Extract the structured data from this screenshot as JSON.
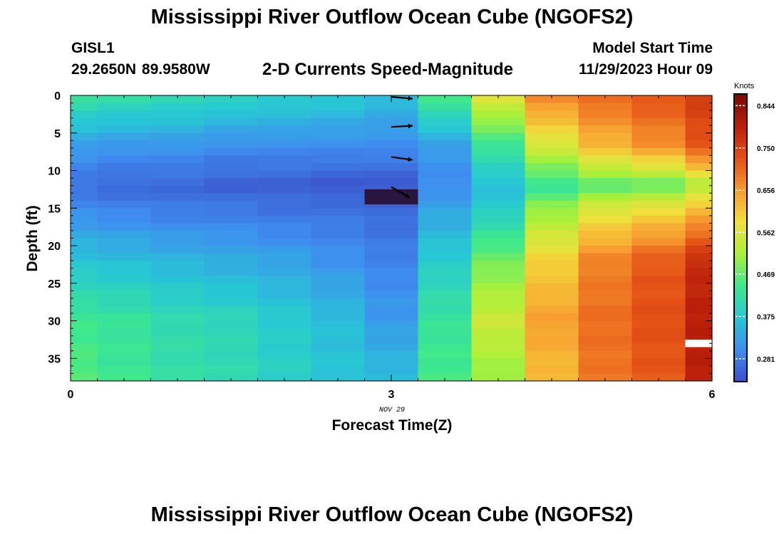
{
  "page": {
    "title": "Mississippi River Outflow Ocean Cube (NGOFS2)",
    "station_name": "GISL1",
    "station_coords": "29.2650N  89.9580W",
    "subtitle": "2-D Currents Speed-Magnitude",
    "model_start_label": "Model Start Time",
    "model_start_value": "11/29/2023 Hour 09",
    "footer_title": "Mississippi River Outflow Ocean Cube (NGOFS2)"
  },
  "chart_data": {
    "type": "heatmap",
    "title": "2-D Currents Speed-Magnitude",
    "xlabel": "Forecast Time(Z)",
    "ylabel": "Depth (ft)",
    "x_ticks": [
      0,
      3,
      6
    ],
    "x_sublabel": "NOV 29",
    "xlim": [
      0,
      6
    ],
    "y_ticks": [
      0,
      5,
      10,
      15,
      20,
      25,
      30,
      35
    ],
    "ylim": [
      38,
      0
    ],
    "colorbar": {
      "label": "Knots",
      "ticks": [
        "0.281",
        "0.375",
        "0.469",
        "0.562",
        "0.656",
        "0.750",
        "0.844"
      ],
      "range": [
        0.23,
        0.87
      ],
      "colors": [
        "#3a4fc8",
        "#3f8cf0",
        "#27c8d4",
        "#3de88e",
        "#a8f03a",
        "#f2e03c",
        "#f89a30",
        "#e45016",
        "#bb1f0a",
        "#7a0a04"
      ]
    },
    "time_columns": [
      0,
      0.5,
      1,
      1.5,
      2,
      2.5,
      3,
      3.5,
      4,
      4.5,
      5,
      5.5,
      6
    ],
    "depth_rows": [
      0.5,
      1.5,
      2.5,
      3.5,
      4.5,
      5.5,
      6.5,
      7.5,
      8.5,
      9.5,
      10.5,
      11.5,
      12.5,
      13.5,
      14.5,
      15.5,
      16.5,
      17.5,
      18.5,
      19.5,
      20.5,
      21.5,
      22.5,
      23.5,
      24.5,
      25.5,
      26.5,
      27.5,
      28.5,
      29.5,
      30.5,
      31.5,
      32.5,
      33.5,
      34.5,
      35.5,
      36.5,
      37.5
    ],
    "profiles": {
      "depth_knots": [
        0,
        7,
        12,
        15,
        22,
        30,
        38
      ],
      "speed_by_time": [
        [
          0.43,
          0.32,
          0.27,
          0.3,
          0.37,
          0.44,
          0.46
        ],
        [
          0.42,
          0.31,
          0.26,
          0.29,
          0.36,
          0.43,
          0.44
        ],
        [
          0.41,
          0.31,
          0.26,
          0.28,
          0.35,
          0.41,
          0.42
        ],
        [
          0.4,
          0.3,
          0.25,
          0.28,
          0.34,
          0.4,
          0.41
        ],
        [
          0.39,
          0.3,
          0.25,
          0.27,
          0.33,
          0.38,
          0.39
        ],
        [
          0.38,
          0.3,
          0.24,
          0.27,
          0.31,
          0.36,
          0.37
        ],
        [
          0.36,
          0.3,
          0.24,
          0.26,
          0.29,
          0.32,
          0.36
        ],
        [
          0.45,
          0.32,
          0.3,
          0.33,
          0.38,
          0.43,
          0.45
        ],
        [
          0.57,
          0.43,
          0.36,
          0.38,
          0.48,
          0.55,
          0.5
        ],
        [
          0.68,
          0.55,
          0.43,
          0.5,
          0.6,
          0.65,
          0.62
        ],
        [
          0.71,
          0.62,
          0.46,
          0.56,
          0.68,
          0.7,
          0.69
        ],
        [
          0.73,
          0.66,
          0.47,
          0.58,
          0.72,
          0.73,
          0.72
        ],
        [
          0.76,
          0.72,
          0.52,
          0.62,
          0.78,
          0.8,
          0.8
        ]
      ]
    },
    "anomaly_cell": {
      "time": 3,
      "depth_from": 12.5,
      "depth_to": 14.5,
      "color": "#2a1540"
    },
    "missing_cell": {
      "time": 6,
      "depth_from": 32.5,
      "depth_to": 33.5
    },
    "direction_arrows": [
      {
        "time": 3,
        "depth": 0,
        "angle_deg": 5
      },
      {
        "time": 3,
        "depth": 4,
        "angle_deg": -3
      },
      {
        "time": 3,
        "depth": 8,
        "angle_deg": 8
      },
      {
        "time": 3,
        "depth": 12,
        "angle_deg": 30
      }
    ]
  }
}
